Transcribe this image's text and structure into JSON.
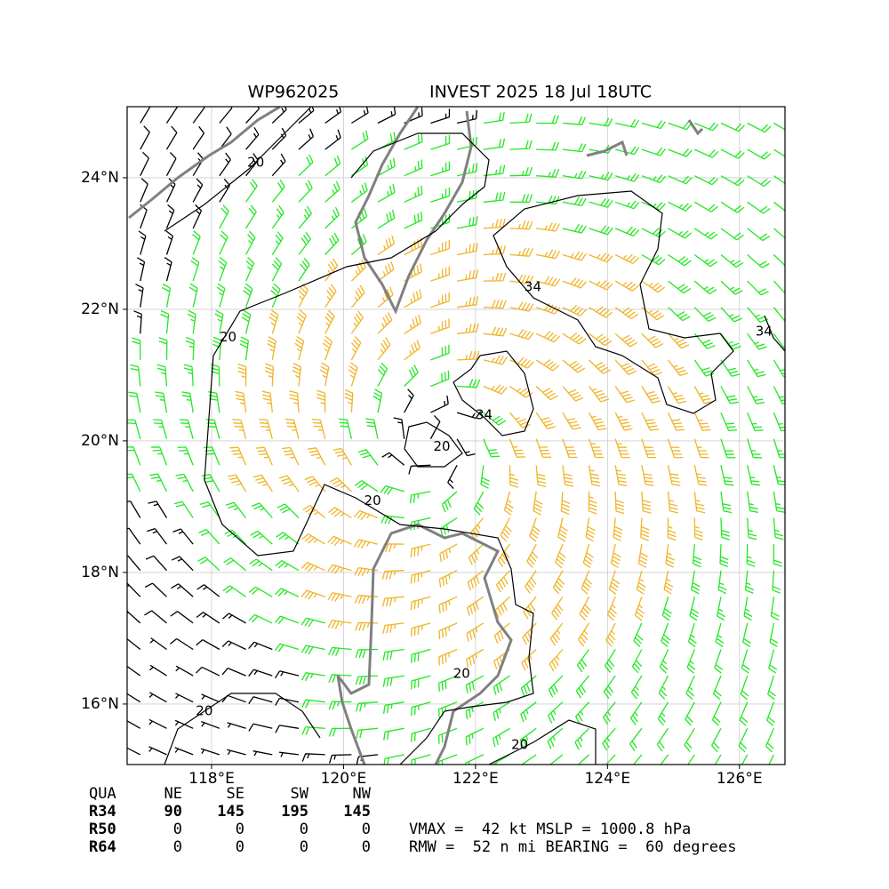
{
  "title_left": "WP962025",
  "title_right": "INVEST 2025 18 Jul 18UTC",
  "map": {
    "xlim": [
      116.72,
      126.69
    ],
    "ylim": [
      15.08,
      25.08
    ],
    "xticks": [
      {
        "value": 118,
        "label": "118°E"
      },
      {
        "value": 120,
        "label": "120°E"
      },
      {
        "value": 122,
        "label": "122°E"
      },
      {
        "value": 124,
        "label": "124°E"
      },
      {
        "value": 126,
        "label": "126°E"
      }
    ],
    "yticks": [
      {
        "value": 16,
        "label": "16°N"
      },
      {
        "value": 18,
        "label": "18°N"
      },
      {
        "value": 20,
        "label": "20°N"
      },
      {
        "value": 22,
        "label": "22°N"
      },
      {
        "value": 24,
        "label": "24°N"
      }
    ],
    "grid": true,
    "contour_labels": [
      {
        "text": "20",
        "lon": 118.67,
        "lat": 24.23
      },
      {
        "text": "20",
        "lon": 118.25,
        "lat": 21.57
      },
      {
        "text": "20",
        "lon": 121.49,
        "lat": 19.91
      },
      {
        "text": "20",
        "lon": 120.44,
        "lat": 19.09
      },
      {
        "text": "20",
        "lon": 117.89,
        "lat": 15.89
      },
      {
        "text": "20",
        "lon": 121.79,
        "lat": 16.46
      },
      {
        "text": "20",
        "lon": 122.67,
        "lat": 15.38
      },
      {
        "text": "34",
        "lon": 122.87,
        "lat": 22.34
      },
      {
        "text": "34",
        "lon": 122.13,
        "lat": 20.39
      },
      {
        "text": "34",
        "lon": 126.37,
        "lat": 21.66
      }
    ]
  },
  "table": {
    "header": [
      "QUA",
      "NE",
      "SE",
      "SW",
      "NW"
    ],
    "rows": [
      [
        "R34",
        "90",
        "145",
        "195",
        "145"
      ],
      [
        "R50",
        "0",
        "0",
        "0",
        "0"
      ],
      [
        "R64",
        "0",
        "0",
        "0",
        "0"
      ]
    ]
  },
  "info": [
    "VMAX =  42 kt MSLP = 1000.8 hPa",
    "RMW =  52 n mi BEARING =  60 degrees"
  ]
}
